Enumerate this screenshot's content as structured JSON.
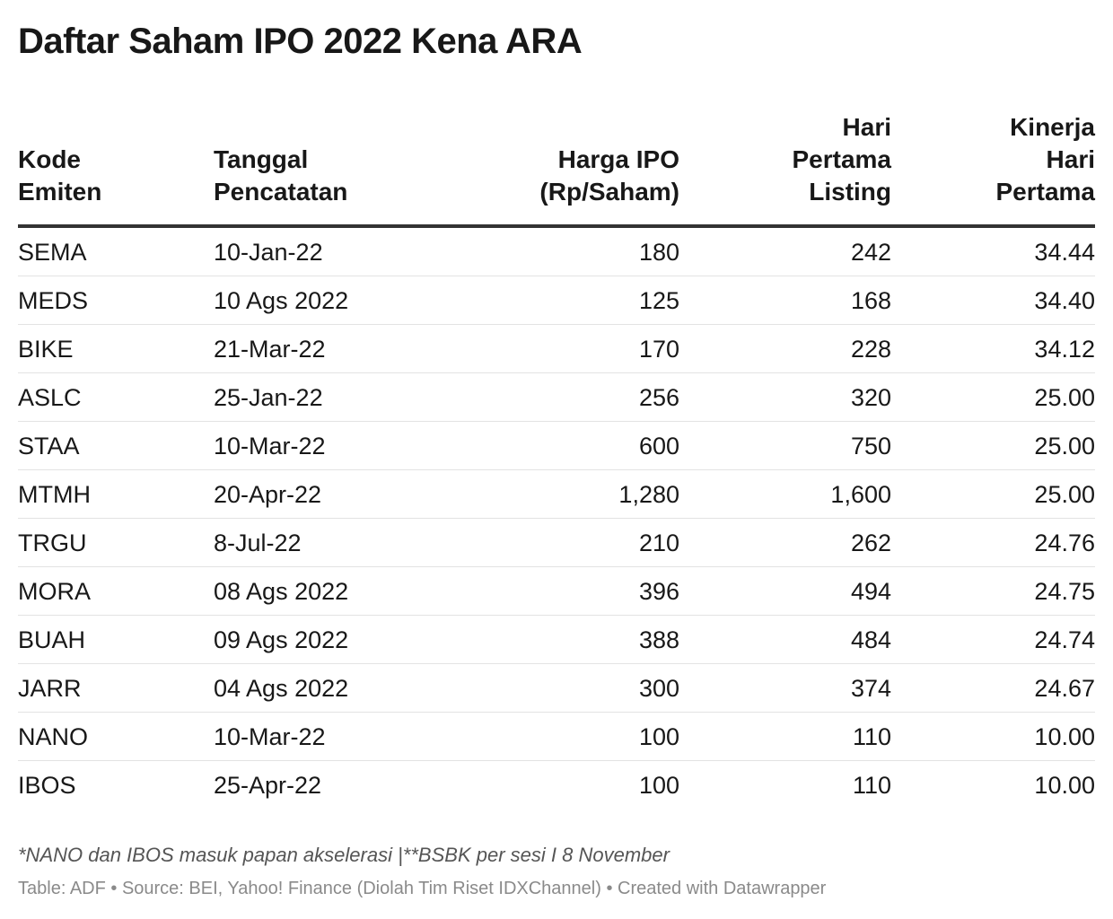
{
  "title": "Daftar Saham IPO 2022 Kena ARA",
  "chart_data": {
    "type": "table",
    "columns": [
      {
        "label_lines": [
          "Kode",
          "Emiten"
        ],
        "align": "left"
      },
      {
        "label_lines": [
          "Tanggal",
          "Pencatatan"
        ],
        "align": "left"
      },
      {
        "label_lines": [
          "Harga IPO",
          "(Rp/Saham)"
        ],
        "align": "right"
      },
      {
        "label_lines": [
          "Hari",
          "Pertama",
          "Listing"
        ],
        "align": "right"
      },
      {
        "label_lines": [
          "Kinerja",
          "Hari",
          "Pertama"
        ],
        "align": "right"
      }
    ],
    "rows": [
      [
        "SEMA",
        "10-Jan-22",
        "180",
        "242",
        "34.44"
      ],
      [
        "MEDS",
        "10 Ags 2022",
        "125",
        "168",
        "34.40"
      ],
      [
        "BIKE",
        "21-Mar-22",
        "170",
        "228",
        "34.12"
      ],
      [
        "ASLC",
        "25-Jan-22",
        "256",
        "320",
        "25.00"
      ],
      [
        "STAA",
        "10-Mar-22",
        "600",
        "750",
        "25.00"
      ],
      [
        "MTMH",
        "20-Apr-22",
        "1,280",
        "1,600",
        "25.00"
      ],
      [
        "TRGU",
        "8-Jul-22",
        "210",
        "262",
        "24.76"
      ],
      [
        "MORA",
        "08 Ags 2022",
        "396",
        "494",
        "24.75"
      ],
      [
        "BUAH",
        "09 Ags 2022",
        "388",
        "484",
        "24.74"
      ],
      [
        "JARR",
        "04 Ags 2022",
        "300",
        "374",
        "24.67"
      ],
      [
        "NANO",
        "10-Mar-22",
        "100",
        "110",
        "10.00"
      ],
      [
        "IBOS",
        "25-Apr-22",
        "100",
        "110",
        "10.00"
      ]
    ]
  },
  "notes": "*NANO dan IBOS masuk papan akselerasi |**BSBK per sesi I 8 November",
  "footer": "Table: ADF • Source: BEI, Yahoo! Finance (Diolah Tim Riset IDXChannel) • Created with Datawrapper",
  "colors": {
    "text": "#181818",
    "header_rule": "#333333",
    "row_rule": "#e3e3e3",
    "notes": "#555555",
    "footer": "#8a8a8a"
  }
}
